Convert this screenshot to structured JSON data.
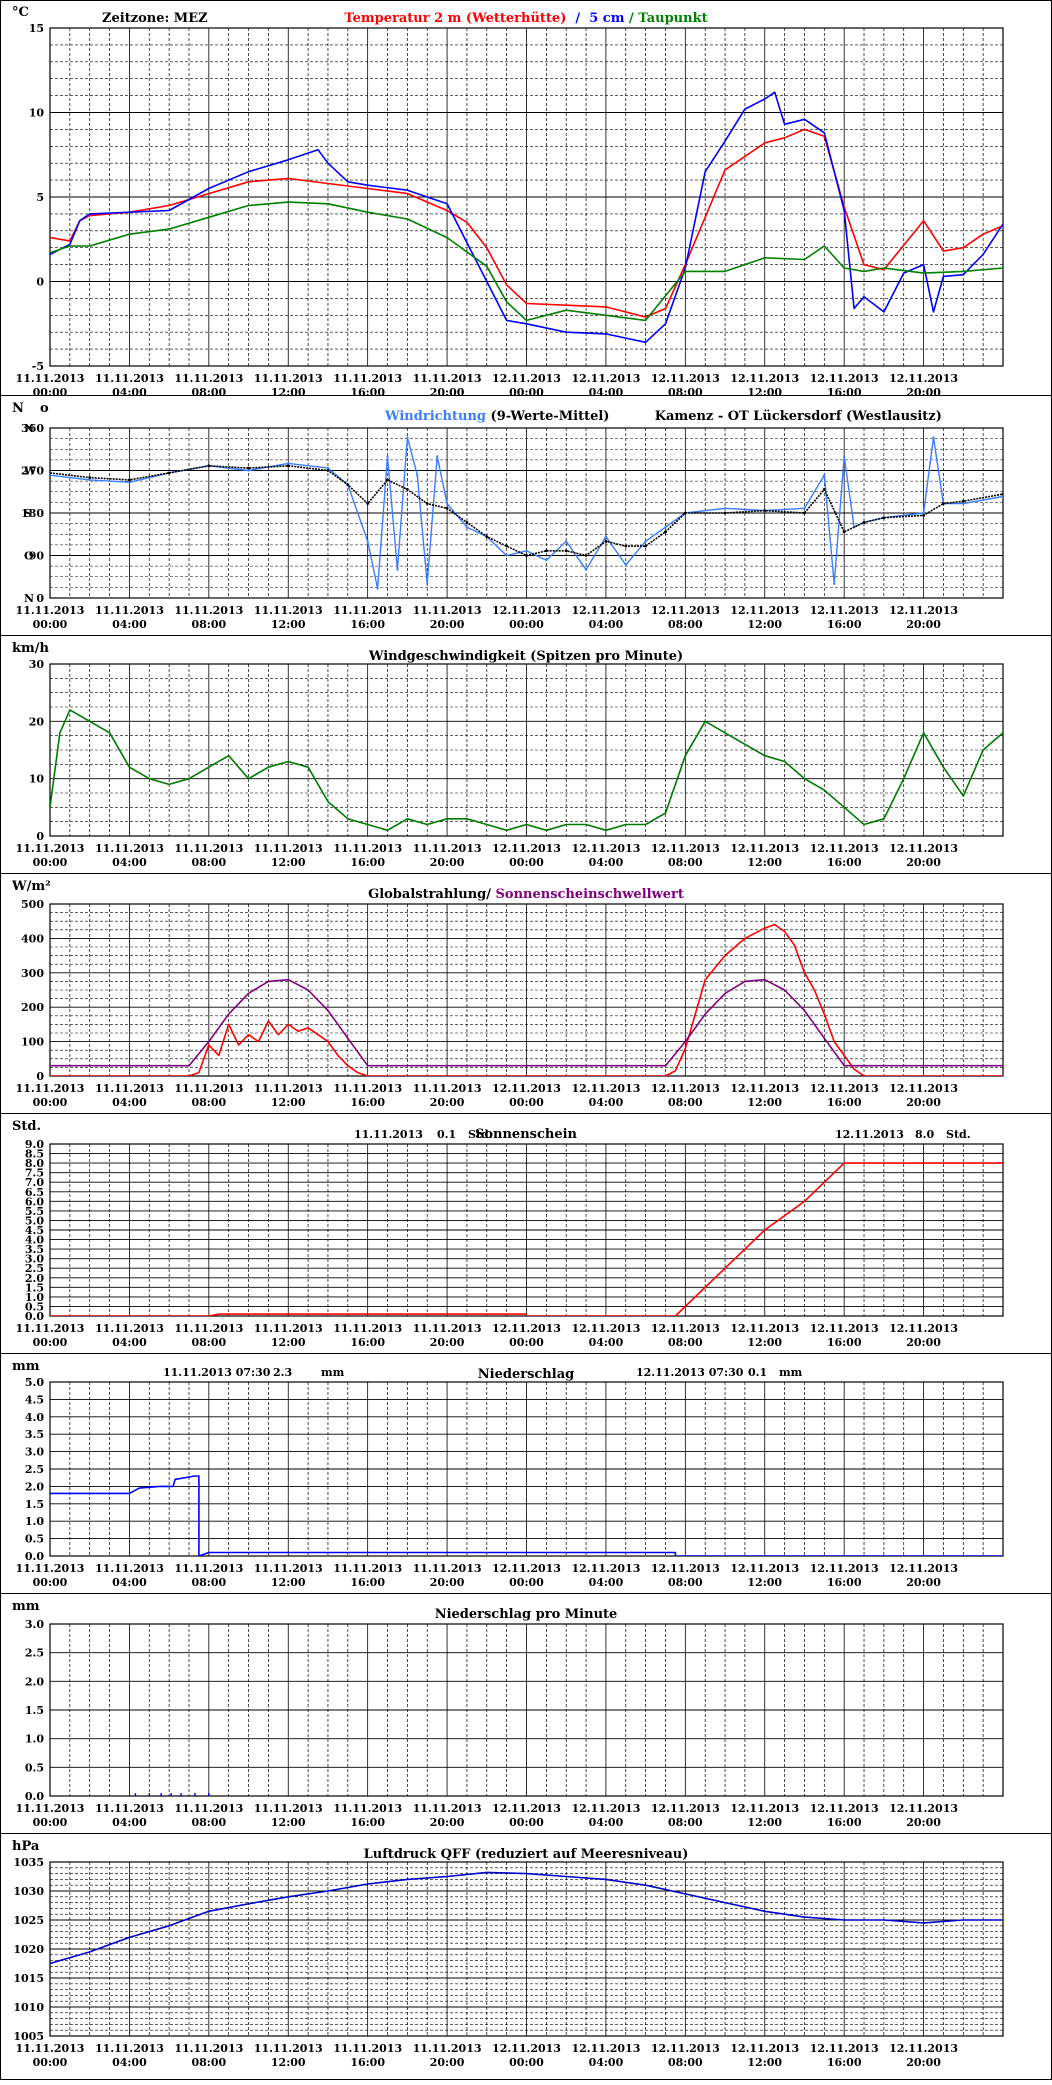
{
  "x_ticks": [
    {
      "date": "11.11.2013",
      "time": "00:00"
    },
    {
      "date": "11.11.2013",
      "time": "04:00"
    },
    {
      "date": "11.11.2013",
      "time": "08:00"
    },
    {
      "date": "11.11.2013",
      "time": "12:00"
    },
    {
      "date": "11.11.2013",
      "time": "16:00"
    },
    {
      "date": "11.11.2013",
      "time": "20:00"
    },
    {
      "date": "12.11.2013",
      "time": "00:00"
    },
    {
      "date": "12.11.2013",
      "time": "04:00"
    },
    {
      "date": "12.11.2013",
      "time": "08:00"
    },
    {
      "date": "12.11.2013",
      "time": "12:00"
    },
    {
      "date": "12.11.2013",
      "time": "16:00"
    },
    {
      "date": "12.11.2013",
      "time": "20:00"
    }
  ],
  "colors": {
    "red": "#ff0000",
    "blue": "#0000ff",
    "green": "#008000",
    "lightblue": "#3a7dff",
    "black": "#000000",
    "purple": "#800080",
    "darkgreen": "#007a00",
    "navy": "#0000cc",
    "grid": "#000000"
  },
  "chart_data": [
    {
      "type": "line",
      "unit": "°C",
      "title_left": "Zeitzone: MEZ",
      "title_parts": [
        {
          "text": "Temperatur 2 m (Wetterhütte)",
          "color": "#ff0000"
        },
        {
          "text": "  /  ",
          "color": "#0000ff"
        },
        {
          "text": "5 cm",
          "color": "#0000ff"
        },
        {
          "text": " / ",
          "color": "#008000"
        },
        {
          "text": "Taupunkt",
          "color": "#008000"
        }
      ],
      "ylim": [
        -5,
        15
      ],
      "yticks": [
        -5,
        0,
        5,
        10,
        15
      ],
      "series": [
        {
          "name": "Temperatur 2 m (Wetterhütte)",
          "color": "#ff0000",
          "x": [
            0,
            1,
            1.5,
            2,
            4,
            6,
            8,
            10,
            12,
            14,
            16,
            18,
            20,
            21,
            22,
            23,
            24,
            26,
            28,
            30,
            31,
            32,
            34,
            36,
            37,
            38,
            39,
            40,
            41,
            42,
            44,
            45,
            46,
            47,
            48
          ],
          "y": [
            2.6,
            2.4,
            3.6,
            3.9,
            4.1,
            4.5,
            5.2,
            5.9,
            6.1,
            5.8,
            5.5,
            5.2,
            4.2,
            3.5,
            2,
            -0.2,
            -1.3,
            -1.4,
            -1.5,
            -2.1,
            -1.6,
            1.0,
            6.6,
            8.2,
            8.5,
            9.0,
            8.6,
            4.4,
            1.0,
            0.7,
            3.6,
            1.8,
            2.0,
            2.8,
            3.3
          ]
        },
        {
          "name": "5 cm",
          "color": "#0000ff",
          "x": [
            0,
            1,
            1.5,
            2,
            4,
            6,
            8,
            10,
            12,
            13.5,
            14,
            15,
            16,
            18,
            20,
            21,
            22,
            23,
            24,
            26,
            28,
            30,
            31,
            32,
            33,
            34,
            35,
            36,
            36.5,
            37,
            38,
            39,
            40,
            40.5,
            41,
            42,
            43,
            44,
            44.5,
            45,
            46,
            47,
            48
          ],
          "y": [
            1.6,
            2.2,
            3.6,
            4.0,
            4.1,
            4.2,
            5.5,
            6.5,
            7.2,
            7.8,
            7.0,
            5.9,
            5.7,
            5.4,
            4.6,
            2.3,
            0,
            -2.3,
            -2.5,
            -3.0,
            -3.1,
            -3.6,
            -2.5,
            0.8,
            6.5,
            8.3,
            10.2,
            10.8,
            11.2,
            9.3,
            9.6,
            8.8,
            4.2,
            -1.6,
            -0.9,
            -1.8,
            0.5,
            1.0,
            -1.8,
            0.3,
            0.4,
            1.6,
            3.4
          ]
        },
        {
          "name": "Taupunkt",
          "color": "#008000",
          "x": [
            0,
            1,
            2,
            4,
            6,
            8,
            10,
            12,
            14,
            16,
            18,
            20,
            22,
            23,
            24,
            26,
            28,
            30,
            32,
            34,
            36,
            38,
            39,
            40,
            41,
            42,
            44,
            46,
            48
          ],
          "y": [
            1.7,
            2.1,
            2.1,
            2.8,
            3.1,
            3.8,
            4.5,
            4.7,
            4.6,
            4.1,
            3.7,
            2.6,
            0.9,
            -1.2,
            -2.3,
            -1.7,
            -2.0,
            -2.3,
            0.6,
            0.6,
            1.4,
            1.3,
            2.1,
            0.8,
            0.6,
            0.8,
            0.5,
            0.6,
            0.8
          ]
        }
      ]
    },
    {
      "type": "scatter",
      "unit": "N",
      "unit_suffix": "o",
      "title_parts": [
        {
          "text": "Windrichtung",
          "color": "#3a7dff"
        },
        {
          "text": " (9-Werte-Mittel)",
          "color": "#000000"
        },
        {
          "text": "          Kamenz - OT Lückersdorf (Westlausitz)",
          "color": "#000000"
        }
      ],
      "ylim": [
        0,
        360
      ],
      "yticks": [
        0,
        90,
        180,
        270,
        360
      ],
      "yletters": [
        {
          "v": 0,
          "t": "N"
        },
        {
          "v": 90,
          "t": "O"
        },
        {
          "v": 180,
          "t": "S"
        },
        {
          "v": 270,
          "t": "W"
        },
        {
          "v": 360,
          "t": "N"
        }
      ],
      "series": [
        {
          "name": "Windrichtung",
          "color": "#3a7dff",
          "x": [
            0,
            2,
            4,
            6,
            8,
            10,
            12,
            14,
            15,
            16,
            16.5,
            17,
            17.5,
            18,
            18.5,
            19,
            19.5,
            20,
            21,
            22,
            23,
            24,
            25,
            26,
            27,
            28,
            29,
            30,
            31,
            32,
            34,
            36,
            38,
            39,
            39.5,
            40,
            40.5,
            41,
            42,
            44,
            44.5,
            45,
            46,
            48
          ],
          "y": [
            260,
            250,
            245,
            265,
            280,
            270,
            285,
            275,
            240,
            120,
            20,
            300,
            60,
            340,
            260,
            30,
            300,
            200,
            150,
            130,
            90,
            100,
            80,
            120,
            60,
            130,
            70,
            120,
            150,
            180,
            190,
            185,
            190,
            260,
            30,
            300,
            150,
            160,
            170,
            180,
            340,
            200,
            200,
            215
          ]
        },
        {
          "name": "9-Werte-Mittel",
          "color": "#000000",
          "x": [
            0,
            2,
            4,
            6,
            8,
            10,
            12,
            14,
            15,
            16,
            17,
            18,
            19,
            20,
            21,
            22,
            23,
            24,
            25,
            26,
            27,
            28,
            29,
            30,
            31,
            32,
            34,
            36,
            38,
            39,
            40,
            41,
            42,
            44,
            45,
            46,
            48
          ],
          "y": [
            265,
            255,
            250,
            265,
            280,
            275,
            280,
            270,
            240,
            200,
            250,
            230,
            200,
            190,
            160,
            130,
            110,
            90,
            100,
            100,
            90,
            120,
            110,
            110,
            140,
            180,
            180,
            185,
            180,
            230,
            140,
            160,
            170,
            175,
            200,
            205,
            220
          ]
        }
      ]
    },
    {
      "type": "line",
      "unit": "km/h",
      "title_parts": [
        {
          "text": "Windgeschwindigkeit (Spitzen pro Minute)",
          "color": "#000000"
        }
      ],
      "ylim": [
        0,
        30
      ],
      "yticks": [
        0,
        10,
        20,
        30
      ],
      "series": [
        {
          "name": "Windgeschwindigkeit",
          "color": "#007a00",
          "x": [
            0,
            0.5,
            1,
            2,
            3,
            4,
            5,
            6,
            7,
            8,
            9,
            10,
            11,
            12,
            13,
            14,
            15,
            16,
            17,
            18,
            19,
            20,
            21,
            22,
            23,
            24,
            25,
            26,
            27,
            28,
            29,
            30,
            31,
            32,
            33,
            34,
            35,
            36,
            37,
            38,
            39,
            40,
            41,
            42,
            43,
            44,
            45,
            46,
            47,
            48
          ],
          "y": [
            5,
            18,
            22,
            20,
            18,
            12,
            10,
            9,
            10,
            12,
            14,
            10,
            12,
            13,
            12,
            6,
            3,
            2,
            1,
            3,
            2,
            3,
            3,
            2,
            1,
            2,
            1,
            2,
            2,
            1,
            2,
            2,
            4,
            14,
            20,
            18,
            16,
            14,
            13,
            10,
            8,
            5,
            2,
            3,
            10,
            18,
            12,
            7,
            15,
            18
          ]
        }
      ]
    },
    {
      "type": "line",
      "unit": "W/m²",
      "title_parts": [
        {
          "text": "Globalstrahlung/ ",
          "color": "#000000"
        },
        {
          "text": "Sonnenscheinschwellwert",
          "color": "#800080"
        }
      ],
      "ylim": [
        0,
        500
      ],
      "yticks": [
        0,
        100,
        200,
        300,
        400,
        500
      ],
      "series": [
        {
          "name": "Globalstrahlung",
          "color": "#ff0000",
          "x": [
            0,
            7,
            7.5,
            8,
            8.5,
            9,
            9.5,
            10,
            10.5,
            11,
            11.5,
            12,
            12.5,
            13,
            13.5,
            14,
            14.5,
            15,
            15.5,
            16,
            24,
            31,
            31.5,
            32,
            32.5,
            33,
            34,
            35,
            36,
            36.5,
            37,
            37.5,
            38,
            38.5,
            39,
            39.5,
            40,
            40.5,
            41,
            48
          ],
          "y": [
            0,
            0,
            10,
            90,
            60,
            150,
            90,
            120,
            100,
            160,
            120,
            150,
            130,
            140,
            120,
            100,
            60,
            30,
            10,
            0,
            0,
            0,
            15,
            80,
            180,
            280,
            350,
            400,
            430,
            440,
            420,
            380,
            300,
            250,
            180,
            100,
            60,
            20,
            0,
            0
          ]
        },
        {
          "name": "Sonnenscheinschwellwert",
          "color": "#800080",
          "x": [
            0,
            7,
            8,
            9,
            10,
            11,
            12,
            13,
            14,
            15,
            16,
            31,
            32,
            33,
            34,
            35,
            36,
            37,
            38,
            39,
            40,
            41,
            48
          ],
          "y": [
            30,
            30,
            100,
            180,
            240,
            275,
            280,
            250,
            190,
            110,
            30,
            30,
            100,
            180,
            240,
            275,
            280,
            250,
            190,
            110,
            30,
            30,
            30
          ]
        }
      ]
    },
    {
      "type": "line",
      "unit": "Std.",
      "title_parts": [
        {
          "text": "Sonnenschein",
          "color": "#000000"
        }
      ],
      "annotations": [
        {
          "date": "11.11.2013",
          "value": "0.1",
          "unit": "Std."
        },
        {
          "date": "12.11.2013",
          "value": "8.0",
          "unit": "Std."
        }
      ],
      "ylim": [
        0,
        9
      ],
      "yticks": [
        0,
        0.5,
        1,
        1.5,
        2,
        2.5,
        3,
        3.5,
        4,
        4.5,
        5,
        5.5,
        6,
        6.5,
        7,
        7.5,
        8,
        8.5,
        9
      ],
      "ytick_labels": [
        "0.0",
        "0.5",
        "1.0",
        "1.5",
        "2.0",
        "2.5",
        "3.0",
        "3.5",
        "4.0",
        "4.5",
        "5.0",
        "5.5",
        "6.0",
        "6.5",
        "7.0",
        "7.5",
        "8.0",
        "8.5",
        "9.0"
      ],
      "series": [
        {
          "name": "Sonnenschein 11.11.2013",
          "color": "#ff0000",
          "x": [
            0,
            8,
            8.5,
            24
          ],
          "y": [
            0,
            0,
            0.1,
            0.1
          ]
        },
        {
          "name": "Sonnenschein 12.11.2013",
          "color": "#ff0000",
          "x": [
            24,
            31.5,
            34,
            36,
            38,
            40,
            48
          ],
          "y": [
            0,
            0,
            2.5,
            4.5,
            6,
            8,
            8
          ]
        }
      ]
    },
    {
      "type": "line",
      "unit": "mm",
      "title_parts": [
        {
          "text": "Niederschlag",
          "color": "#000000"
        }
      ],
      "annotations": [
        {
          "date": "11.11.2013 07:30",
          "value": "2.3",
          "unit": "mm"
        },
        {
          "date": "12.11.2013 07:30",
          "value": "0.1",
          "unit": "mm"
        }
      ],
      "ylim": [
        0,
        5
      ],
      "yticks": [
        0,
        0.5,
        1,
        1.5,
        2,
        2.5,
        3,
        3.5,
        4,
        4.5,
        5
      ],
      "ytick_labels": [
        "0.0",
        "0.5",
        "1.0",
        "1.5",
        "2.0",
        "2.5",
        "3.0",
        "3.5",
        "4.0",
        "4.5",
        "5.0"
      ],
      "series": [
        {
          "name": "Niederschlag",
          "color": "#0000ff",
          "x": [
            0,
            4,
            4.5,
            5.5,
            6.2,
            6.3,
            7.3,
            7.4,
            7.5,
            7.5,
            8,
            31.5,
            31.5,
            48
          ],
          "y": [
            1.8,
            1.8,
            1.95,
            2.0,
            2.0,
            2.2,
            2.3,
            2.3,
            2.3,
            0,
            0.1,
            0.1,
            0,
            0
          ]
        }
      ]
    },
    {
      "type": "bar",
      "unit": "mm",
      "title_parts": [
        {
          "text": "Niederschlag pro Minute",
          "color": "#000000"
        }
      ],
      "ylim": [
        0,
        3
      ],
      "yticks": [
        0,
        0.5,
        1,
        1.5,
        2,
        2.5,
        3
      ],
      "ytick_labels": [
        "0.0",
        "0.5",
        "1.0",
        "1.5",
        "2.0",
        "2.5",
        "3.0"
      ],
      "series": [
        {
          "name": "Niederschlag pro Minute",
          "color": "#0000ff",
          "x": [
            4.3,
            5.0,
            5.6,
            6.1,
            6.6,
            7.3,
            8.0
          ],
          "y": [
            0.05,
            0.05,
            0.05,
            0.05,
            0.05,
            0.05,
            0.05
          ]
        }
      ]
    },
    {
      "type": "line",
      "unit": "hPa",
      "title_parts": [
        {
          "text": "Luftdruck QFF (reduziert auf Meeresniveau)",
          "color": "#000000"
        }
      ],
      "ylim": [
        1005,
        1035
      ],
      "yticks": [
        1005,
        1010,
        1015,
        1020,
        1025,
        1030,
        1035
      ],
      "series": [
        {
          "name": "Luftdruck QFF",
          "color": "#0000cc",
          "x": [
            0,
            2,
            4,
            6,
            8,
            10,
            12,
            14,
            16,
            18,
            20,
            22,
            24,
            26,
            28,
            30,
            32,
            34,
            36,
            38,
            40,
            42,
            44,
            46,
            48
          ],
          "y": [
            1017.5,
            1019.5,
            1022,
            1024,
            1026.5,
            1027.8,
            1029,
            1030,
            1031.2,
            1032,
            1032.5,
            1033.2,
            1033,
            1032.5,
            1032,
            1031,
            1029.5,
            1028,
            1026.5,
            1025.5,
            1025,
            1025,
            1024.5,
            1025,
            1025
          ]
        }
      ]
    }
  ]
}
